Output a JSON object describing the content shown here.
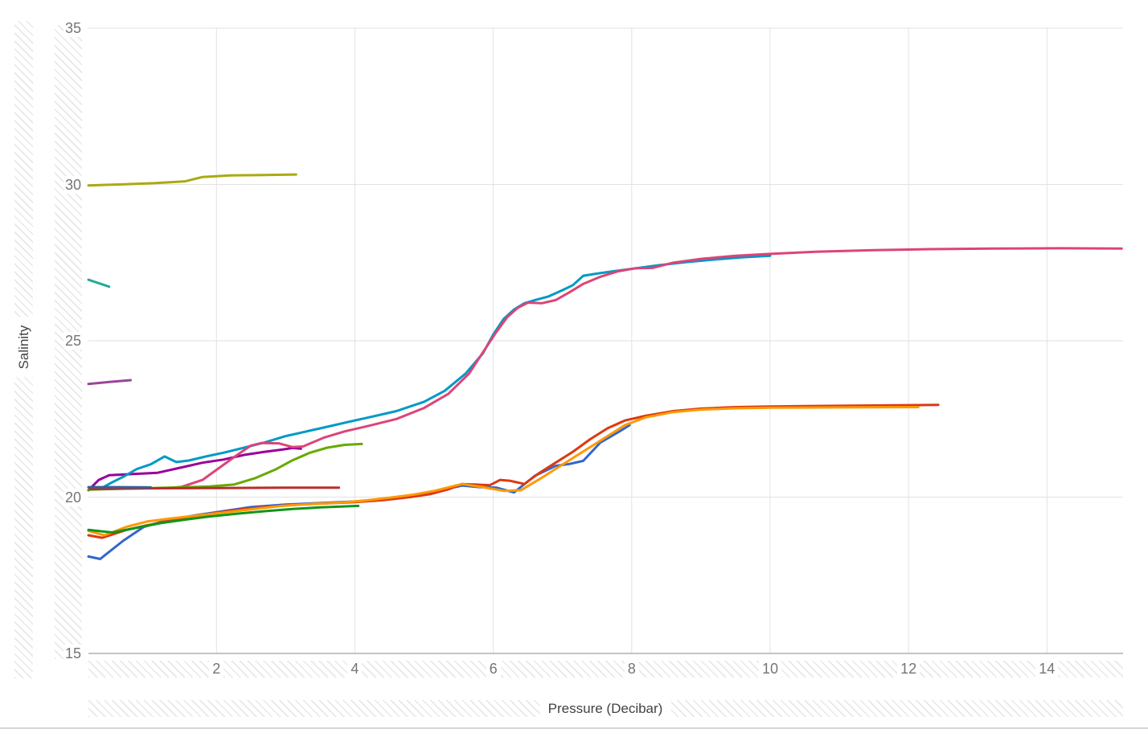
{
  "chart_data": {
    "type": "line",
    "title": "",
    "xlabel": "Pressure (Decibar)",
    "ylabel": "Salinity",
    "xlim": [
      0.15,
      15.1
    ],
    "ylim": [
      15,
      35
    ],
    "x_ticks": [
      2,
      4,
      6,
      8,
      10,
      12,
      14
    ],
    "y_ticks": [
      15,
      20,
      25,
      30,
      35
    ],
    "grid": true,
    "legend": "none",
    "style": {
      "grid_color": "#e2e2e2",
      "baseline_color": "#b0b0b0",
      "tick_label_color": "#757575",
      "axis_title_color": "#424242",
      "hatch_color": "#e8e8e8",
      "divider_color": "#d4d4d4",
      "line_width": 3
    },
    "series": [
      {
        "name": "blue",
        "color": "#3366CC",
        "points": [
          [
            0.15,
            18.1
          ],
          [
            0.32,
            18.02
          ],
          [
            0.65,
            18.6
          ],
          [
            0.95,
            19.05
          ],
          [
            1.3,
            19.27
          ],
          [
            1.7,
            19.42
          ],
          [
            2.1,
            19.55
          ],
          [
            2.5,
            19.68
          ],
          [
            3.0,
            19.76
          ],
          [
            3.5,
            19.81
          ],
          [
            4.0,
            19.86
          ],
          [
            4.5,
            19.95
          ],
          [
            5.0,
            20.1
          ],
          [
            5.3,
            20.25
          ],
          [
            5.55,
            20.37
          ],
          [
            5.8,
            20.32
          ],
          [
            6.05,
            20.3
          ],
          [
            6.3,
            20.15
          ],
          [
            6.6,
            20.68
          ],
          [
            6.9,
            21.0
          ],
          [
            7.1,
            21.06
          ],
          [
            7.3,
            21.16
          ],
          [
            7.55,
            21.75
          ],
          [
            7.8,
            22.07
          ],
          [
            7.97,
            22.3
          ]
        ]
      },
      {
        "name": "red",
        "color": "#DC3912",
        "points": [
          [
            0.15,
            18.78
          ],
          [
            0.35,
            18.7
          ],
          [
            0.7,
            18.95
          ],
          [
            1.0,
            19.1
          ],
          [
            1.3,
            19.22
          ],
          [
            1.6,
            19.35
          ],
          [
            2.0,
            19.5
          ],
          [
            2.4,
            19.62
          ],
          [
            2.8,
            19.7
          ],
          [
            3.2,
            19.76
          ],
          [
            3.6,
            19.8
          ],
          [
            4.0,
            19.84
          ],
          [
            4.4,
            19.9
          ],
          [
            4.8,
            20.0
          ],
          [
            5.1,
            20.1
          ],
          [
            5.35,
            20.25
          ],
          [
            5.55,
            20.42
          ],
          [
            5.75,
            20.4
          ],
          [
            5.95,
            20.38
          ],
          [
            6.1,
            20.55
          ],
          [
            6.25,
            20.52
          ],
          [
            6.45,
            20.42
          ],
          [
            6.65,
            20.75
          ],
          [
            6.9,
            21.1
          ],
          [
            7.15,
            21.45
          ],
          [
            7.4,
            21.85
          ],
          [
            7.65,
            22.2
          ],
          [
            7.9,
            22.45
          ],
          [
            8.2,
            22.6
          ],
          [
            8.6,
            22.75
          ],
          [
            9.0,
            22.83
          ],
          [
            9.5,
            22.88
          ],
          [
            10.0,
            22.9
          ],
          [
            10.5,
            22.91
          ],
          [
            11.0,
            22.92
          ],
          [
            11.5,
            22.93
          ],
          [
            12.0,
            22.94
          ],
          [
            12.43,
            22.95
          ]
        ]
      },
      {
        "name": "orange",
        "color": "#FF9900",
        "points": [
          [
            0.15,
            18.92
          ],
          [
            0.38,
            18.78
          ],
          [
            0.7,
            19.05
          ],
          [
            1.0,
            19.22
          ],
          [
            1.35,
            19.32
          ],
          [
            1.75,
            19.42
          ],
          [
            2.15,
            19.52
          ],
          [
            2.55,
            19.62
          ],
          [
            2.95,
            19.72
          ],
          [
            3.35,
            19.78
          ],
          [
            3.75,
            19.82
          ],
          [
            4.1,
            19.88
          ],
          [
            4.5,
            19.98
          ],
          [
            4.85,
            20.08
          ],
          [
            5.15,
            20.2
          ],
          [
            5.55,
            20.42
          ],
          [
            5.85,
            20.32
          ],
          [
            6.15,
            20.2
          ],
          [
            6.4,
            20.22
          ],
          [
            6.65,
            20.55
          ],
          [
            6.9,
            20.9
          ],
          [
            7.15,
            21.25
          ],
          [
            7.4,
            21.6
          ],
          [
            7.65,
            21.95
          ],
          [
            7.9,
            22.3
          ],
          [
            8.2,
            22.55
          ],
          [
            8.6,
            22.72
          ],
          [
            9.0,
            22.8
          ],
          [
            9.5,
            22.84
          ],
          [
            10.0,
            22.86
          ],
          [
            11.0,
            22.87
          ],
          [
            12.14,
            22.88
          ]
        ]
      },
      {
        "name": "green",
        "color": "#109618",
        "points": [
          [
            0.15,
            18.95
          ],
          [
            0.5,
            18.87
          ],
          [
            0.85,
            19.02
          ],
          [
            1.2,
            19.17
          ],
          [
            1.55,
            19.28
          ],
          [
            1.9,
            19.38
          ],
          [
            2.3,
            19.47
          ],
          [
            2.7,
            19.55
          ],
          [
            3.1,
            19.62
          ],
          [
            3.5,
            19.67
          ],
          [
            3.8,
            19.7
          ],
          [
            4.05,
            19.72
          ]
        ]
      },
      {
        "name": "purple",
        "color": "#990099",
        "points": [
          [
            0.15,
            20.22
          ],
          [
            0.3,
            20.55
          ],
          [
            0.45,
            20.7
          ],
          [
            0.8,
            20.74
          ],
          [
            1.15,
            20.78
          ],
          [
            1.5,
            20.95
          ],
          [
            1.8,
            21.1
          ],
          [
            2.1,
            21.2
          ],
          [
            2.4,
            21.35
          ],
          [
            2.7,
            21.45
          ],
          [
            2.95,
            21.52
          ],
          [
            3.1,
            21.57
          ],
          [
            3.22,
            21.55
          ]
        ]
      },
      {
        "name": "cyan",
        "color": "#0099C6",
        "points": [
          [
            0.35,
            20.3
          ],
          [
            0.5,
            20.48
          ],
          [
            0.68,
            20.68
          ],
          [
            0.85,
            20.9
          ],
          [
            1.05,
            21.05
          ],
          [
            1.25,
            21.3
          ],
          [
            1.42,
            21.12
          ],
          [
            1.6,
            21.17
          ],
          [
            1.85,
            21.3
          ],
          [
            2.1,
            21.42
          ],
          [
            2.4,
            21.58
          ],
          [
            2.7,
            21.75
          ],
          [
            3.0,
            21.95
          ],
          [
            3.3,
            22.1
          ],
          [
            3.6,
            22.25
          ],
          [
            3.9,
            22.4
          ],
          [
            4.2,
            22.55
          ],
          [
            4.6,
            22.75
          ],
          [
            5.0,
            23.05
          ],
          [
            5.3,
            23.4
          ],
          [
            5.6,
            23.95
          ],
          [
            5.85,
            24.6
          ],
          [
            6.0,
            25.2
          ],
          [
            6.15,
            25.7
          ],
          [
            6.3,
            26.0
          ],
          [
            6.45,
            26.2
          ],
          [
            6.6,
            26.3
          ],
          [
            6.8,
            26.42
          ],
          [
            7.0,
            26.62
          ],
          [
            7.15,
            26.78
          ],
          [
            7.3,
            27.08
          ],
          [
            7.5,
            27.15
          ],
          [
            7.75,
            27.23
          ],
          [
            8.0,
            27.3
          ],
          [
            8.4,
            27.42
          ],
          [
            8.8,
            27.52
          ],
          [
            9.2,
            27.6
          ],
          [
            9.6,
            27.67
          ],
          [
            10.0,
            27.72
          ]
        ]
      },
      {
        "name": "pink",
        "color": "#DD4477",
        "points": [
          [
            1.25,
            20.28
          ],
          [
            1.5,
            20.33
          ],
          [
            1.8,
            20.55
          ],
          [
            2.05,
            20.95
          ],
          [
            2.3,
            21.35
          ],
          [
            2.5,
            21.65
          ],
          [
            2.65,
            21.73
          ],
          [
            2.9,
            21.72
          ],
          [
            3.1,
            21.6
          ],
          [
            3.25,
            21.62
          ],
          [
            3.55,
            21.9
          ],
          [
            3.85,
            22.1
          ],
          [
            4.2,
            22.28
          ],
          [
            4.6,
            22.5
          ],
          [
            5.0,
            22.85
          ],
          [
            5.35,
            23.3
          ],
          [
            5.65,
            23.95
          ],
          [
            5.9,
            24.8
          ],
          [
            6.05,
            25.3
          ],
          [
            6.2,
            25.75
          ],
          [
            6.35,
            26.05
          ],
          [
            6.5,
            26.22
          ],
          [
            6.7,
            26.2
          ],
          [
            6.9,
            26.3
          ],
          [
            7.1,
            26.55
          ],
          [
            7.3,
            26.82
          ],
          [
            7.55,
            27.05
          ],
          [
            7.8,
            27.22
          ],
          [
            8.05,
            27.32
          ],
          [
            8.3,
            27.33
          ],
          [
            8.6,
            27.5
          ],
          [
            9.0,
            27.62
          ],
          [
            9.5,
            27.72
          ],
          [
            10.0,
            27.78
          ],
          [
            10.7,
            27.85
          ],
          [
            11.5,
            27.9
          ],
          [
            12.3,
            27.93
          ],
          [
            13.2,
            27.95
          ],
          [
            14.2,
            27.96
          ],
          [
            15.08,
            27.95
          ]
        ]
      },
      {
        "name": "light-green",
        "color": "#66AA00",
        "points": [
          [
            0.15,
            20.24
          ],
          [
            0.7,
            20.27
          ],
          [
            1.3,
            20.3
          ],
          [
            1.9,
            20.34
          ],
          [
            2.25,
            20.4
          ],
          [
            2.55,
            20.6
          ],
          [
            2.85,
            20.88
          ],
          [
            3.1,
            21.18
          ],
          [
            3.35,
            21.42
          ],
          [
            3.6,
            21.58
          ],
          [
            3.85,
            21.67
          ],
          [
            4.1,
            21.7
          ]
        ]
      },
      {
        "name": "dark-red",
        "color": "#B82E2E",
        "points": [
          [
            0.17,
            20.26
          ],
          [
            1.0,
            20.28
          ],
          [
            2.0,
            20.29
          ],
          [
            3.0,
            20.3
          ],
          [
            3.77,
            20.3
          ]
        ]
      },
      {
        "name": "steel-blue",
        "color": "#316395",
        "points": [
          [
            0.15,
            20.32
          ],
          [
            0.6,
            20.32
          ],
          [
            1.05,
            20.31
          ]
        ]
      },
      {
        "name": "violet",
        "color": "#994499",
        "points": [
          [
            0.15,
            23.62
          ],
          [
            0.45,
            23.68
          ],
          [
            0.76,
            23.74
          ]
        ]
      },
      {
        "name": "teal",
        "color": "#22AA99",
        "points": [
          [
            0.15,
            26.95
          ],
          [
            0.45,
            26.73
          ]
        ]
      },
      {
        "name": "olive",
        "color": "#AAAA11",
        "points": [
          [
            0.15,
            29.97
          ],
          [
            0.6,
            30.0
          ],
          [
            1.1,
            30.04
          ],
          [
            1.55,
            30.1
          ],
          [
            1.8,
            30.24
          ],
          [
            2.2,
            30.29
          ],
          [
            2.7,
            30.3
          ],
          [
            3.15,
            30.32
          ]
        ]
      }
    ]
  }
}
